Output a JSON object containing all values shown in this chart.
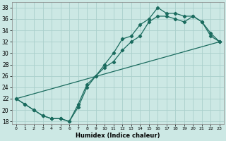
{
  "title": "",
  "xlabel": "Humidex (Indice chaleur)",
  "bg_color": "#cce8e4",
  "grid_color": "#aad0cc",
  "line_color": "#1a6b5e",
  "xlim": [
    -0.5,
    23.5
  ],
  "ylim": [
    17.5,
    39
  ],
  "xticks": [
    0,
    1,
    2,
    3,
    4,
    5,
    6,
    7,
    8,
    9,
    10,
    11,
    12,
    13,
    14,
    15,
    16,
    17,
    18,
    19,
    20,
    21,
    22,
    23
  ],
  "yticks": [
    18,
    20,
    22,
    24,
    26,
    28,
    30,
    32,
    34,
    36,
    38
  ],
  "line1_x": [
    0,
    1,
    2,
    3,
    4,
    5,
    6,
    7,
    8,
    9,
    10,
    11,
    12,
    13,
    14,
    15,
    16,
    17,
    18,
    19,
    20,
    21,
    22,
    23
  ],
  "line1_y": [
    22,
    21,
    20,
    19,
    18.5,
    18.5,
    18,
    20.5,
    24,
    26,
    28,
    30,
    32.5,
    33,
    35,
    36,
    38,
    37,
    37,
    36.5,
    36.5,
    35.5,
    33.5,
    32
  ],
  "line2_x": [
    0,
    1,
    2,
    3,
    4,
    5,
    6,
    7,
    8,
    9,
    10,
    11,
    12,
    13,
    14,
    15,
    16,
    17,
    18,
    19,
    20,
    21,
    22,
    23
  ],
  "line2_y": [
    22,
    21,
    20,
    19,
    18.5,
    18.5,
    18,
    21,
    24.5,
    26,
    27.5,
    28.5,
    30.5,
    32,
    33,
    35.5,
    36.5,
    36.5,
    36,
    35.5,
    36.5,
    35.5,
    33,
    32
  ],
  "line3_x": [
    0,
    23
  ],
  "line3_y": [
    22,
    32
  ]
}
